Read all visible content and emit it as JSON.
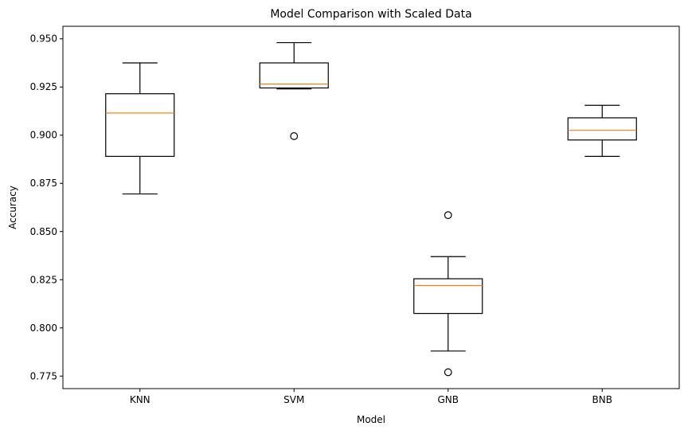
{
  "chart_data": {
    "type": "box",
    "title": "Model Comparison with Scaled Data",
    "xlabel": "Model",
    "ylabel": "Accuracy",
    "ylim": [
      0.7685,
      0.9565
    ],
    "yticks": [
      "0.775",
      "0.800",
      "0.825",
      "0.850",
      "0.875",
      "0.900",
      "0.925",
      "0.950"
    ],
    "grid": false,
    "colors": {
      "box": "#000000",
      "median": "#ff7f0e",
      "axes": "#000000"
    },
    "series": [
      {
        "category": "KNN",
        "whisker_low": 0.8695,
        "q1": 0.889,
        "median": 0.9115,
        "q3": 0.9215,
        "whisker_high": 0.9375,
        "outliers": []
      },
      {
        "category": "SVM",
        "whisker_low": 0.924,
        "q1": 0.9245,
        "median": 0.9265,
        "q3": 0.9375,
        "whisker_high": 0.948,
        "outliers": [
          0.8995
        ]
      },
      {
        "category": "GNB",
        "whisker_low": 0.788,
        "q1": 0.8075,
        "median": 0.822,
        "q3": 0.8255,
        "whisker_high": 0.837,
        "outliers": [
          0.8585,
          0.777
        ]
      },
      {
        "category": "BNB",
        "whisker_low": 0.889,
        "q1": 0.8975,
        "median": 0.9025,
        "q3": 0.909,
        "whisker_high": 0.9155,
        "outliers": []
      }
    ]
  }
}
